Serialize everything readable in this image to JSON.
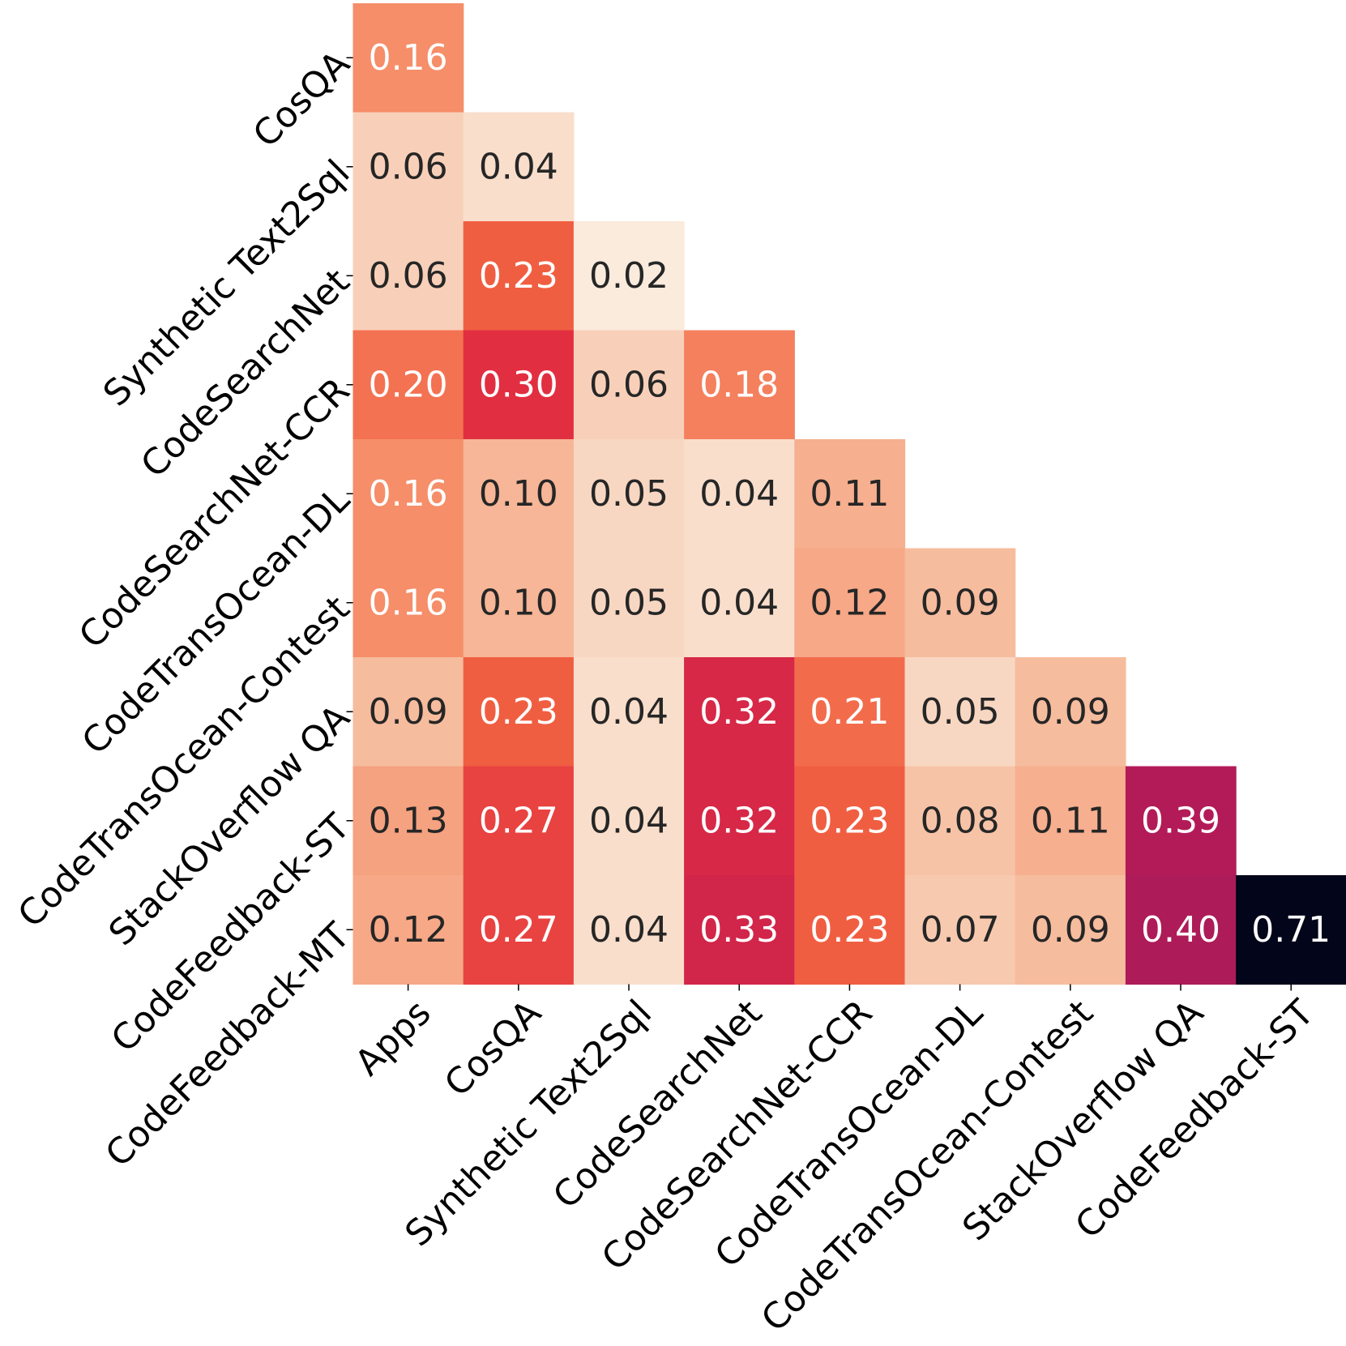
{
  "chart_data": {
    "type": "heatmap",
    "title": "",
    "xlabel": "",
    "ylabel": "",
    "x_categories": [
      "Apps",
      "CosQA",
      "Synthetic Text2Sql",
      "CodeSearchNet",
      "CodeSearchNet-CCR",
      "CodeTransOcean-DL",
      "CodeTransOcean-Contest",
      "StackOverflow QA",
      "CodeFeedback-ST"
    ],
    "y_categories": [
      "CosQA",
      "Synthetic Text2Sql",
      "CodeSearchNet",
      "CodeSearchNet-CCR",
      "CodeTransOcean-DL",
      "CodeTransOcean-Contest",
      "StackOverflow QA",
      "CodeFeedback-ST",
      "CodeFeedback-MT"
    ],
    "values": [
      [
        0.16
      ],
      [
        0.06,
        0.04
      ],
      [
        0.06,
        0.23,
        0.02
      ],
      [
        0.2,
        0.3,
        0.06,
        0.18
      ],
      [
        0.16,
        0.1,
        0.05,
        0.04,
        0.11
      ],
      [
        0.16,
        0.1,
        0.05,
        0.04,
        0.12,
        0.09
      ],
      [
        0.09,
        0.23,
        0.04,
        0.32,
        0.21,
        0.05,
        0.09
      ],
      [
        0.13,
        0.27,
        0.04,
        0.32,
        0.23,
        0.08,
        0.11,
        0.39
      ],
      [
        0.12,
        0.27,
        0.04,
        0.33,
        0.23,
        0.07,
        0.09,
        0.4,
        0.71
      ]
    ],
    "value_labels": [
      [
        "0.16"
      ],
      [
        "0.06",
        "0.04"
      ],
      [
        "0.06",
        "0.23",
        "0.02"
      ],
      [
        "0.20",
        "0.30",
        "0.06",
        "0.18"
      ],
      [
        "0.16",
        "0.10",
        "0.05",
        "0.04",
        "0.11"
      ],
      [
        "0.16",
        "0.10",
        "0.05",
        "0.04",
        "0.12",
        "0.09"
      ],
      [
        "0.09",
        "0.23",
        "0.04",
        "0.32",
        "0.21",
        "0.05",
        "0.09"
      ],
      [
        "0.13",
        "0.27",
        "0.04",
        "0.32",
        "0.23",
        "0.08",
        "0.11",
        "0.39"
      ],
      [
        "0.12",
        "0.27",
        "0.04",
        "0.33",
        "0.23",
        "0.07",
        "0.09",
        "0.40",
        "0.71"
      ]
    ],
    "color_scale": "rocket_r",
    "annotated": true,
    "grid": false,
    "legend": "none"
  }
}
